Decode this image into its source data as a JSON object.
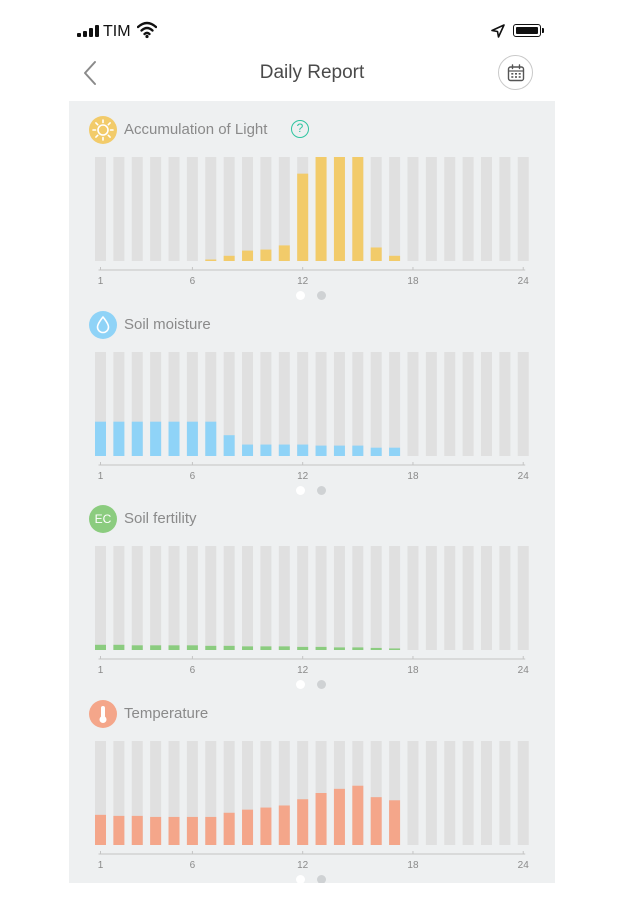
{
  "status_bar": {
    "carrier": "TIM"
  },
  "header": {
    "title": "Daily Report"
  },
  "colors": {
    "light": "#f2cb6a",
    "moisture": "#8fd3f7",
    "fertility": "#8bcc7f",
    "temperature": "#f4a68a",
    "track": "#e0e0e0",
    "help": "#2fc4a0"
  },
  "icons": {
    "back": "chevron-left-icon",
    "calendar": "calendar-icon",
    "light": "sun-icon",
    "moisture": "water-drop-icon",
    "fertility": "ec-icon",
    "temperature": "thermometer-icon",
    "help": "question-icon"
  },
  "sections": [
    {
      "title": "Accumulation of Light",
      "has_help": true,
      "help_label": "?",
      "icon_label": "",
      "color_key": "light",
      "chart_data": {
        "type": "bar",
        "x": [
          1,
          2,
          3,
          4,
          5,
          6,
          7,
          8,
          9,
          10,
          11,
          12,
          13,
          14,
          15,
          16,
          17,
          18,
          19,
          20,
          21,
          22,
          23,
          24
        ],
        "values": [
          0,
          0,
          0,
          0,
          0,
          0,
          0.01,
          0.05,
          0.1,
          0.11,
          0.15,
          0.84,
          1,
          1,
          1,
          0.13,
          0.05,
          0,
          0,
          0,
          0,
          0,
          0,
          0
        ],
        "ylim": [
          0,
          1
        ],
        "ticks": [
          "1",
          "6",
          "12",
          "18",
          "24"
        ],
        "pages": 2,
        "active_page": 0
      }
    },
    {
      "title": "Soil moisture",
      "has_help": false,
      "icon_label": "",
      "color_key": "moisture",
      "chart_data": {
        "type": "bar",
        "x": [
          1,
          2,
          3,
          4,
          5,
          6,
          7,
          8,
          9,
          10,
          11,
          12,
          13,
          14,
          15,
          16,
          17,
          18,
          19,
          20,
          21,
          22,
          23,
          24
        ],
        "values": [
          0.33,
          0.33,
          0.33,
          0.33,
          0.33,
          0.33,
          0.33,
          0.2,
          0.11,
          0.11,
          0.11,
          0.11,
          0.1,
          0.1,
          0.1,
          0.08,
          0.08,
          0,
          0,
          0,
          0,
          0,
          0,
          0
        ],
        "ylim": [
          0,
          1
        ],
        "ticks": [
          "1",
          "6",
          "12",
          "18",
          "24"
        ],
        "pages": 2,
        "active_page": 0
      }
    },
    {
      "title": "Soil fertility",
      "has_help": false,
      "icon_label": "EC",
      "color_key": "fertility",
      "chart_data": {
        "type": "bar",
        "x": [
          1,
          2,
          3,
          4,
          5,
          6,
          7,
          8,
          9,
          10,
          11,
          12,
          13,
          14,
          15,
          16,
          17,
          18,
          19,
          20,
          21,
          22,
          23,
          24
        ],
        "values": [
          0.05,
          0.05,
          0.045,
          0.045,
          0.045,
          0.045,
          0.04,
          0.04,
          0.035,
          0.035,
          0.035,
          0.03,
          0.03,
          0.025,
          0.025,
          0.02,
          0.015,
          0,
          0,
          0,
          0,
          0,
          0,
          0
        ],
        "ylim": [
          0,
          1
        ],
        "ticks": [
          "1",
          "6",
          "12",
          "18",
          "24"
        ],
        "pages": 2,
        "active_page": 0
      }
    },
    {
      "title": "Temperature",
      "has_help": false,
      "icon_label": "",
      "color_key": "temperature",
      "chart_data": {
        "type": "bar",
        "x": [
          1,
          2,
          3,
          4,
          5,
          6,
          7,
          8,
          9,
          10,
          11,
          12,
          13,
          14,
          15,
          16,
          17,
          18,
          19,
          20,
          21,
          22,
          23,
          24
        ],
        "values": [
          0.29,
          0.28,
          0.28,
          0.27,
          0.27,
          0.27,
          0.27,
          0.31,
          0.34,
          0.36,
          0.38,
          0.44,
          0.5,
          0.54,
          0.57,
          0.46,
          0.43,
          0,
          0,
          0,
          0,
          0,
          0,
          0
        ],
        "ylim": [
          0,
          1
        ],
        "ticks": [
          "1",
          "6",
          "12",
          "18",
          "24"
        ],
        "pages": 2,
        "active_page": 0
      }
    }
  ]
}
